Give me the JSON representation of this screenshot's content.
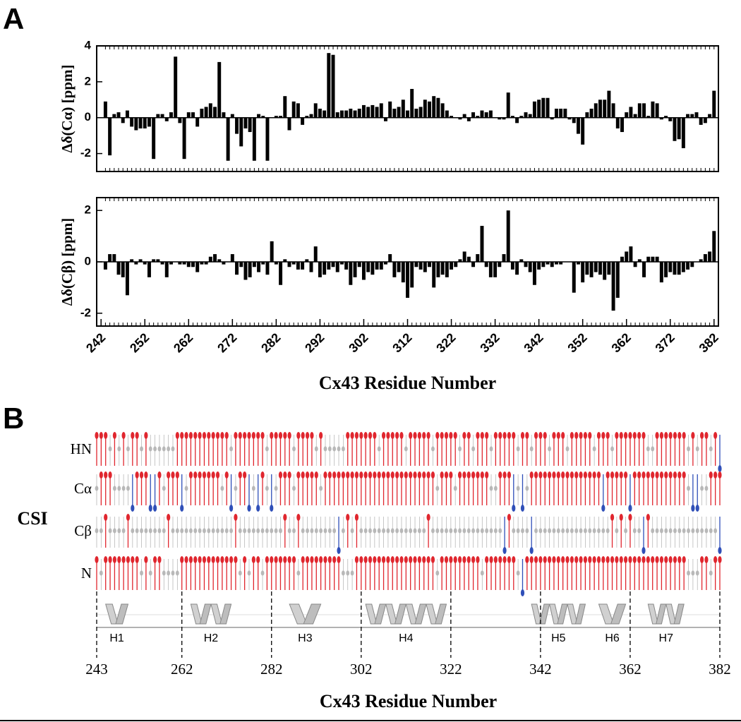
{
  "panel_labels": [
    "A",
    "B"
  ],
  "chart_data": [
    {
      "type": "bar",
      "ylabel": "Δδ(Cα) [ppm]",
      "color": "#000000",
      "x": [
        243,
        244,
        245,
        246,
        247,
        248,
        249,
        250,
        251,
        252,
        253,
        254,
        255,
        256,
        257,
        258,
        259,
        260,
        261,
        262,
        263,
        264,
        265,
        266,
        267,
        268,
        269,
        270,
        271,
        272,
        273,
        274,
        275,
        276,
        277,
        278,
        279,
        280,
        281,
        282,
        283,
        284,
        285,
        286,
        287,
        288,
        289,
        290,
        291,
        292,
        293,
        294,
        295,
        296,
        297,
        298,
        299,
        300,
        301,
        302,
        303,
        304,
        305,
        306,
        307,
        308,
        309,
        310,
        311,
        312,
        313,
        314,
        315,
        316,
        317,
        318,
        319,
        320,
        321,
        322,
        323,
        324,
        325,
        326,
        327,
        328,
        329,
        330,
        331,
        332,
        333,
        334,
        335,
        336,
        337,
        338,
        339,
        340,
        341,
        342,
        343,
        344,
        345,
        346,
        347,
        348,
        349,
        350,
        351,
        352,
        353,
        354,
        355,
        356,
        357,
        358,
        359,
        360,
        361,
        362,
        363,
        364,
        365,
        366,
        367,
        368,
        369,
        370,
        371,
        372,
        373,
        374,
        375,
        376,
        377,
        378,
        379,
        380,
        381,
        382
      ],
      "values": [
        0.9,
        -2.1,
        0.2,
        0.3,
        -0.3,
        0.4,
        -0.5,
        -0.7,
        -0.6,
        -0.6,
        -0.5,
        -2.3,
        0.2,
        0.2,
        -0.2,
        0.3,
        3.4,
        -0.3,
        -2.3,
        0.3,
        0.3,
        -0.5,
        0.5,
        0.6,
        0.8,
        0.6,
        3.1,
        0.3,
        -2.4,
        0.2,
        -0.9,
        -1.6,
        -0.6,
        -0.8,
        -2.4,
        0.2,
        0.1,
        -2.4,
        0.0,
        0.1,
        0.1,
        1.2,
        -0.7,
        0.9,
        0.8,
        -0.4,
        0.1,
        0.2,
        0.8,
        0.5,
        0.4,
        3.6,
        3.5,
        0.3,
        0.4,
        0.4,
        0.5,
        0.4,
        0.5,
        0.7,
        0.6,
        0.7,
        0.6,
        0.8,
        -0.2,
        0.9,
        0.5,
        0.6,
        1.0,
        0.4,
        1.6,
        0.5,
        0.6,
        1.0,
        0.9,
        1.2,
        1.1,
        0.8,
        0.4,
        0.1,
        0.0,
        -0.1,
        0.2,
        -0.2,
        0.3,
        0.1,
        0.4,
        0.3,
        0.4,
        0.0,
        -0.1,
        -0.1,
        1.4,
        0.1,
        -0.3,
        0.1,
        0.3,
        0.2,
        0.9,
        1.0,
        1.1,
        1.1,
        -0.1,
        0.5,
        0.5,
        0.5,
        -0.1,
        -0.3,
        -0.9,
        -1.5,
        0.3,
        0.5,
        0.8,
        1.0,
        1.0,
        1.5,
        0.8,
        -0.6,
        -0.8,
        0.3,
        0.6,
        0.2,
        0.8,
        0.8,
        0.1,
        0.9,
        0.8,
        -0.1,
        0.1,
        -0.2,
        -1.3,
        -1.2,
        -1.7,
        0.2,
        0.2,
        0.3,
        -0.4,
        -0.3,
        0.2,
        1.5
      ],
      "xlim": [
        241,
        383
      ],
      "ylim": [
        -3,
        4
      ],
      "yticks": [
        -2,
        0,
        2,
        4
      ]
    },
    {
      "type": "bar",
      "ylabel": "Δδ(Cβ) [ppm]",
      "xlabel": "Cx43 Residue Number",
      "color": "#000000",
      "x": [
        243,
        244,
        245,
        246,
        247,
        248,
        249,
        250,
        251,
        252,
        253,
        254,
        255,
        256,
        257,
        258,
        259,
        260,
        261,
        262,
        263,
        264,
        265,
        266,
        267,
        268,
        269,
        270,
        271,
        272,
        273,
        274,
        275,
        276,
        277,
        278,
        279,
        280,
        281,
        282,
        283,
        284,
        285,
        286,
        287,
        288,
        289,
        290,
        291,
        292,
        293,
        294,
        295,
        296,
        297,
        298,
        299,
        300,
        301,
        302,
        303,
        304,
        305,
        306,
        307,
        308,
        309,
        310,
        311,
        312,
        313,
        314,
        315,
        316,
        317,
        318,
        319,
        320,
        321,
        322,
        323,
        324,
        325,
        326,
        327,
        328,
        329,
        330,
        331,
        332,
        333,
        334,
        335,
        336,
        337,
        338,
        339,
        340,
        341,
        342,
        343,
        344,
        345,
        346,
        347,
        348,
        349,
        350,
        351,
        352,
        353,
        354,
        355,
        356,
        357,
        358,
        359,
        360,
        361,
        362,
        363,
        364,
        365,
        366,
        367,
        368,
        369,
        370,
        371,
        372,
        373,
        374,
        375,
        376,
        377,
        378,
        379,
        380,
        381,
        382
      ],
      "values": [
        -0.3,
        0.3,
        0.3,
        -0.5,
        -0.6,
        -1.3,
        0.1,
        -0.1,
        0.1,
        -0.1,
        -0.6,
        0.1,
        0.1,
        -0.1,
        -0.6,
        -0.1,
        0.0,
        -0.1,
        -0.1,
        -0.2,
        -0.2,
        -0.4,
        -0.1,
        -0.1,
        0.2,
        0.3,
        0.1,
        -0.1,
        0.0,
        0.3,
        -0.5,
        -0.2,
        -0.7,
        -0.6,
        -0.2,
        -0.4,
        -0.1,
        -0.5,
        0.8,
        -0.1,
        -0.9,
        0.1,
        -0.2,
        -0.1,
        -0.3,
        -0.3,
        0.1,
        -0.4,
        0.6,
        -0.6,
        -0.5,
        -0.3,
        -0.2,
        -0.4,
        -0.1,
        -0.3,
        -0.9,
        -0.6,
        -0.2,
        -0.7,
        -0.4,
        -0.5,
        -0.3,
        -0.3,
        -0.1,
        0.3,
        -0.6,
        -0.4,
        -0.8,
        -1.4,
        -1.0,
        -0.2,
        -0.3,
        -0.4,
        -0.2,
        -1.0,
        -0.6,
        -0.5,
        -0.6,
        -0.3,
        -0.2,
        0.1,
        0.4,
        0.2,
        -0.2,
        0.3,
        1.4,
        -0.2,
        -0.6,
        -0.6,
        -0.2,
        0.3,
        2.0,
        -0.3,
        -0.5,
        0.1,
        -0.2,
        -0.4,
        -0.9,
        -0.3,
        -0.2,
        -0.1,
        -0.2,
        -0.1,
        -0.1,
        0.0,
        0.0,
        -1.2,
        -0.1,
        -0.8,
        -0.5,
        -0.6,
        -0.4,
        -0.5,
        -0.7,
        -0.5,
        -1.9,
        -1.4,
        0.2,
        0.4,
        0.6,
        -0.2,
        0.1,
        -0.6,
        0.2,
        0.2,
        0.2,
        -0.8,
        -0.6,
        -0.4,
        -0.5,
        -0.5,
        -0.4,
        -0.3,
        -0.2,
        0.0,
        0.1,
        0.3,
        0.4,
        1.2
      ],
      "xlim": [
        241,
        383
      ],
      "ylim": [
        -2.5,
        2.5
      ],
      "yticks": [
        -2,
        0,
        2
      ],
      "xticks": [
        242,
        252,
        262,
        272,
        282,
        292,
        302,
        312,
        322,
        332,
        342,
        352,
        362,
        372,
        382
      ]
    },
    {
      "type": "csi",
      "title": "CSI",
      "xlabel": "Cx43 Residue Number",
      "positive_color": "#e0262e",
      "zero_color": "#b8b8b8",
      "negative_color": "#2f4fb8",
      "x": [
        243,
        244,
        245,
        246,
        247,
        248,
        249,
        250,
        251,
        252,
        253,
        254,
        255,
        256,
        257,
        258,
        259,
        260,
        261,
        262,
        263,
        264,
        265,
        266,
        267,
        268,
        269,
        270,
        271,
        272,
        273,
        274,
        275,
        276,
        277,
        278,
        279,
        280,
        281,
        282,
        283,
        284,
        285,
        286,
        287,
        288,
        289,
        290,
        291,
        292,
        293,
        294,
        295,
        296,
        297,
        298,
        299,
        300,
        301,
        302,
        303,
        304,
        305,
        306,
        307,
        308,
        309,
        310,
        311,
        312,
        313,
        314,
        315,
        316,
        317,
        318,
        319,
        320,
        321,
        322,
        323,
        324,
        325,
        326,
        327,
        328,
        329,
        330,
        331,
        332,
        333,
        334,
        335,
        336,
        337,
        338,
        339,
        340,
        341,
        342,
        343,
        344,
        345,
        346,
        347,
        348,
        349,
        350,
        351,
        352,
        353,
        354,
        355,
        356,
        357,
        358,
        359,
        360,
        361,
        362,
        363,
        364,
        365,
        366,
        367,
        368,
        369,
        370,
        371,
        372,
        373,
        374,
        375,
        376,
        377,
        378,
        379,
        380,
        381,
        382
      ],
      "rows": [
        {
          "name": "HN",
          "values": [
            1,
            1,
            1,
            0,
            1,
            0,
            1,
            0,
            1,
            1,
            0,
            1,
            0,
            0,
            0,
            0,
            0,
            0,
            1,
            1,
            1,
            1,
            1,
            1,
            1,
            1,
            1,
            1,
            1,
            1,
            0,
            1,
            1,
            1,
            1,
            1,
            1,
            1,
            0,
            1,
            1,
            1,
            1,
            1,
            0,
            1,
            1,
            1,
            1,
            0,
            1,
            0,
            0,
            0,
            0,
            0,
            1,
            1,
            1,
            1,
            1,
            1,
            1,
            0,
            1,
            1,
            1,
            1,
            1,
            0,
            1,
            1,
            1,
            1,
            1,
            0,
            1,
            1,
            1,
            1,
            1,
            0,
            1,
            1,
            0,
            1,
            1,
            1,
            0,
            1,
            1,
            1,
            1,
            1,
            0,
            1,
            1,
            0,
            1,
            1,
            1,
            0,
            1,
            1,
            1,
            0,
            1,
            1,
            1,
            1,
            1,
            0,
            1,
            1,
            1,
            0,
            1,
            1,
            1,
            1,
            1,
            1,
            1,
            0,
            0,
            1,
            1,
            1,
            1,
            1,
            1,
            1,
            0,
            1,
            0,
            1,
            1,
            0,
            1,
            -1
          ]
        },
        {
          "name": "Cα",
          "values": [
            0,
            1,
            1,
            1,
            0,
            0,
            0,
            0,
            -1,
            1,
            1,
            1,
            -1,
            -1,
            1,
            0,
            1,
            1,
            1,
            -1,
            0,
            1,
            1,
            1,
            1,
            1,
            1,
            1,
            0,
            1,
            -1,
            0,
            1,
            1,
            -1,
            0,
            -1,
            1,
            0,
            -1,
            0,
            1,
            1,
            1,
            0,
            1,
            1,
            1,
            1,
            1,
            0,
            1,
            1,
            1,
            1,
            1,
            1,
            1,
            1,
            1,
            1,
            1,
            1,
            1,
            1,
            1,
            1,
            1,
            1,
            1,
            1,
            1,
            1,
            1,
            1,
            1,
            0,
            1,
            1,
            1,
            0,
            1,
            1,
            1,
            1,
            1,
            1,
            1,
            0,
            0,
            1,
            1,
            1,
            -1,
            0,
            -1,
            0,
            1,
            1,
            1,
            1,
            1,
            1,
            1,
            1,
            1,
            1,
            1,
            1,
            1,
            1,
            1,
            1,
            -1,
            1,
            1,
            1,
            1,
            1,
            -1,
            1,
            1,
            1,
            1,
            1,
            1,
            1,
            1,
            1,
            1,
            1,
            1,
            0,
            -1,
            -1,
            0,
            0,
            1,
            1,
            1
          ]
        },
        {
          "name": "Cβ",
          "values": [
            0,
            0,
            1,
            0,
            0,
            0,
            0,
            1,
            0,
            0,
            0,
            0,
            0,
            0,
            0,
            0,
            1,
            0,
            0,
            0,
            0,
            0,
            0,
            0,
            0,
            0,
            0,
            0,
            0,
            0,
            0,
            1,
            0,
            0,
            0,
            0,
            0,
            0,
            0,
            0,
            0,
            0,
            1,
            0,
            0,
            1,
            0,
            0,
            0,
            0,
            0,
            0,
            0,
            0,
            -1,
            0,
            1,
            0,
            1,
            0,
            0,
            0,
            0,
            0,
            0,
            0,
            0,
            0,
            0,
            0,
            0,
            0,
            0,
            0,
            1,
            0,
            0,
            0,
            0,
            0,
            0,
            0,
            0,
            0,
            0,
            0,
            0,
            0,
            0,
            0,
            0,
            -1,
            1,
            0,
            0,
            0,
            0,
            -1,
            0,
            0,
            0,
            0,
            0,
            0,
            0,
            0,
            0,
            0,
            0,
            0,
            0,
            0,
            0,
            0,
            0,
            1,
            0,
            1,
            0,
            1,
            0,
            0,
            -1,
            1,
            0,
            0,
            0,
            0,
            0,
            0,
            0,
            0,
            0,
            0,
            0,
            0,
            0,
            0,
            0,
            -1
          ]
        },
        {
          "name": "N",
          "values": [
            1,
            0,
            1,
            1,
            1,
            1,
            1,
            1,
            1,
            1,
            0,
            1,
            0,
            1,
            1,
            0,
            0,
            0,
            0,
            1,
            1,
            1,
            1,
            1,
            1,
            1,
            1,
            1,
            1,
            1,
            1,
            1,
            0,
            1,
            0,
            1,
            1,
            0,
            1,
            1,
            1,
            1,
            1,
            1,
            1,
            0,
            1,
            1,
            1,
            1,
            1,
            1,
            1,
            1,
            1,
            0,
            0,
            0,
            1,
            1,
            1,
            1,
            1,
            1,
            1,
            1,
            1,
            1,
            1,
            1,
            1,
            1,
            1,
            1,
            1,
            1,
            0,
            1,
            1,
            1,
            1,
            1,
            1,
            1,
            1,
            1,
            0,
            1,
            1,
            1,
            1,
            1,
            1,
            1,
            0,
            -1,
            1,
            1,
            1,
            1,
            1,
            1,
            1,
            1,
            1,
            1,
            1,
            1,
            1,
            1,
            1,
            1,
            1,
            1,
            1,
            1,
            1,
            1,
            1,
            1,
            1,
            1,
            1,
            1,
            1,
            1,
            1,
            1,
            1,
            1,
            1,
            1,
            0,
            0,
            0,
            1,
            1,
            0,
            1,
            1
          ]
        }
      ],
      "helices": [
        {
          "label": "H1",
          "start": 245,
          "end": 250
        },
        {
          "label": "H2",
          "start": 264,
          "end": 273
        },
        {
          "label": "H3",
          "start": 286,
          "end": 293
        },
        {
          "label": "H4",
          "start": 303,
          "end": 321
        },
        {
          "label": "H5",
          "start": 340,
          "end": 352
        },
        {
          "label": "H6",
          "start": 355,
          "end": 361
        },
        {
          "label": "H7",
          "start": 366,
          "end": 374
        }
      ],
      "xlim": [
        243,
        382
      ],
      "xticks": [
        243,
        262,
        282,
        302,
        322,
        342,
        362,
        382
      ]
    }
  ]
}
